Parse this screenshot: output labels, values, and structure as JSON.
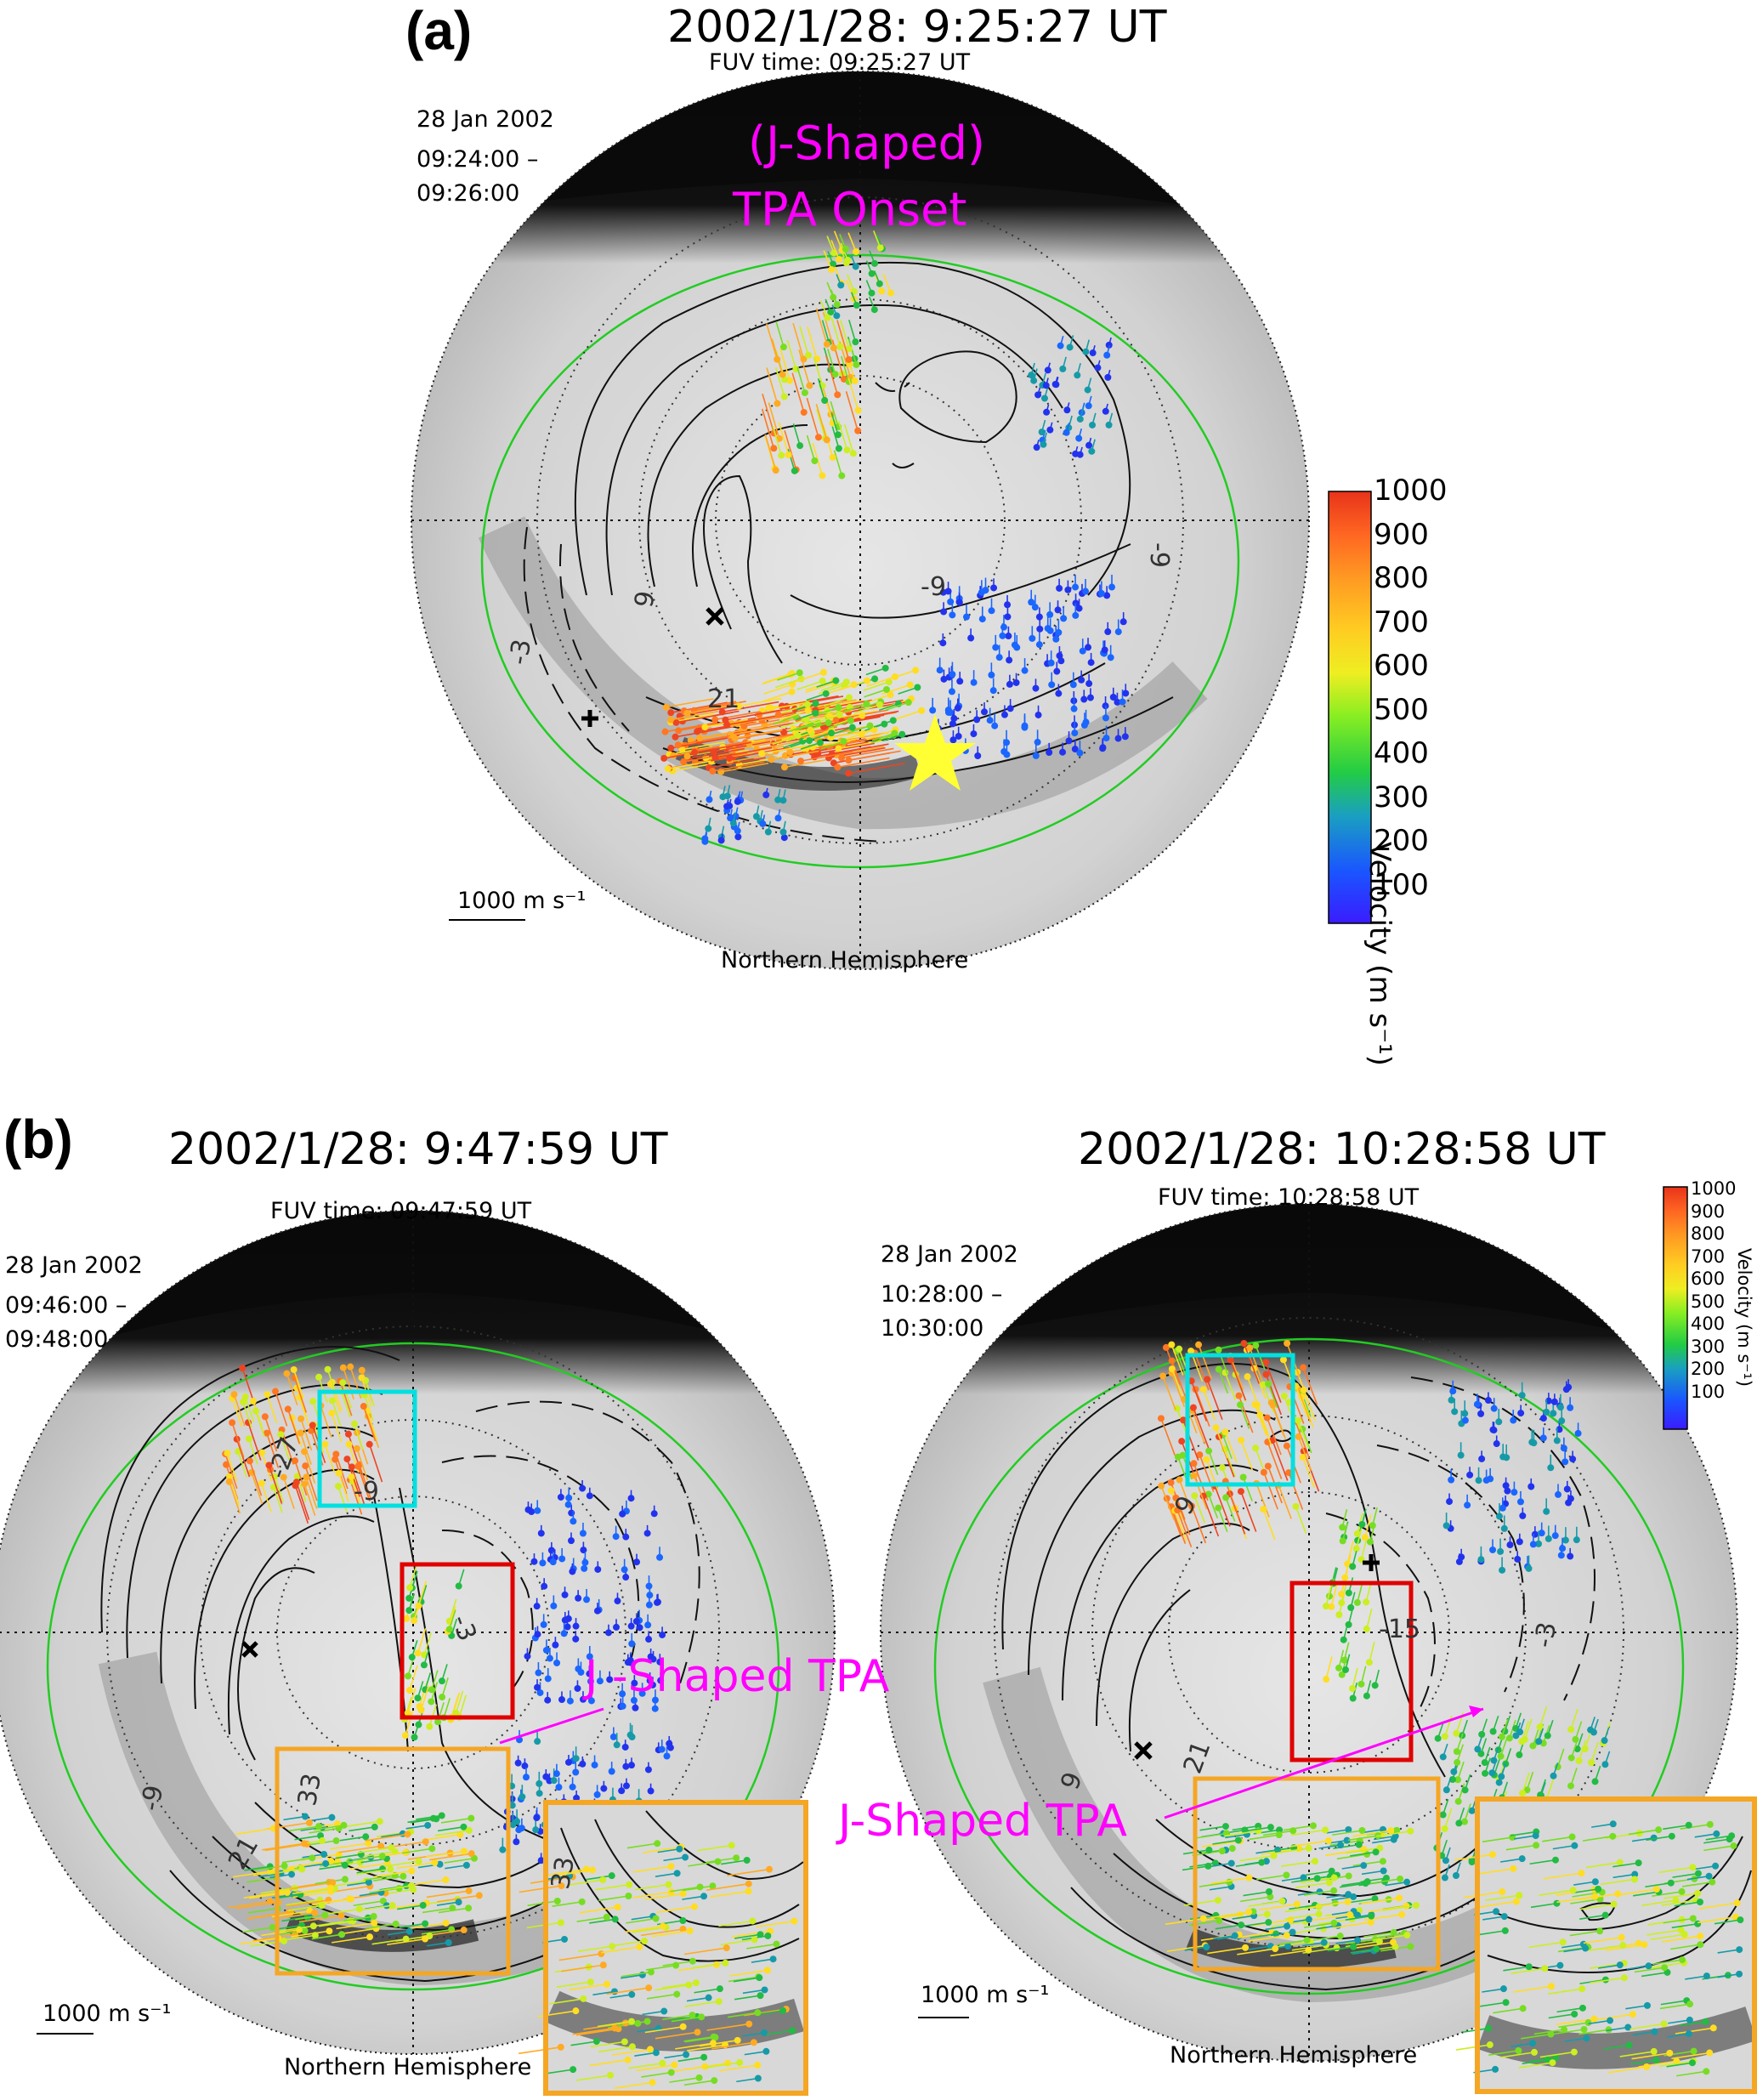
{
  "panel_a": {
    "label": "(a)",
    "title": "2002/1/28: 9:25:27 UT",
    "fuv_time": "FUV time: 09:25:27 UT",
    "date": "28 Jan 2002",
    "time_range": "09:24:00 –\n09:26:00",
    "annotation_line1": "(J-Shaped)",
    "annotation_line2": "TPA Onset",
    "contour_labels": [
      "-9",
      "9",
      "-3",
      "-9",
      "21"
    ],
    "scale": "1000 m s⁻¹",
    "hemisphere": "Northern Hemisphere",
    "colorbar": {
      "ticks": [
        "1000",
        "900",
        "800",
        "700",
        "600",
        "500",
        "400",
        "300",
        "200",
        "100"
      ],
      "title": "Velocity (m s⁻¹)"
    }
  },
  "panel_b_left": {
    "label": "(b)",
    "title": "2002/1/28: 9:47:59 UT",
    "fuv_time": "FUV time: 09:47:59 UT",
    "date": "28 Jan 2002",
    "time_range": "09:46:00 –\n09:48:00",
    "annotation": "J -Shaped TPA",
    "contour_labels": [
      "-27",
      "-9",
      "-3",
      "33",
      "-9",
      "21",
      "33"
    ],
    "scale": "1000 m s⁻¹",
    "hemisphere": "Northern Hemisphere"
  },
  "panel_b_right": {
    "title": "2002/1/28: 10:28:58 UT",
    "fuv_time": "FUV time: 10:28:58 UT",
    "date": "28 Jan 2002",
    "time_range": "10:28:00 –\n10:30:00",
    "annotation": "J-Shaped TPA",
    "contour_labels": [
      "-15",
      "9",
      "-3",
      "9",
      "21"
    ],
    "scale": "1000 m s⁻¹",
    "hemisphere": "Northern Hemisphere",
    "colorbar": {
      "ticks": [
        "1000",
        "900",
        "800",
        "700",
        "600",
        "500",
        "400",
        "300",
        "200",
        "100"
      ],
      "title": "Velocity (m s⁻¹)"
    }
  },
  "colors": {
    "annotation": "#ff00ff",
    "box_cyan": "#00e0e0",
    "box_red": "#e00000",
    "box_orange": "#f5a623",
    "boundary_green": "#22cc22",
    "star": "#ffff33"
  }
}
